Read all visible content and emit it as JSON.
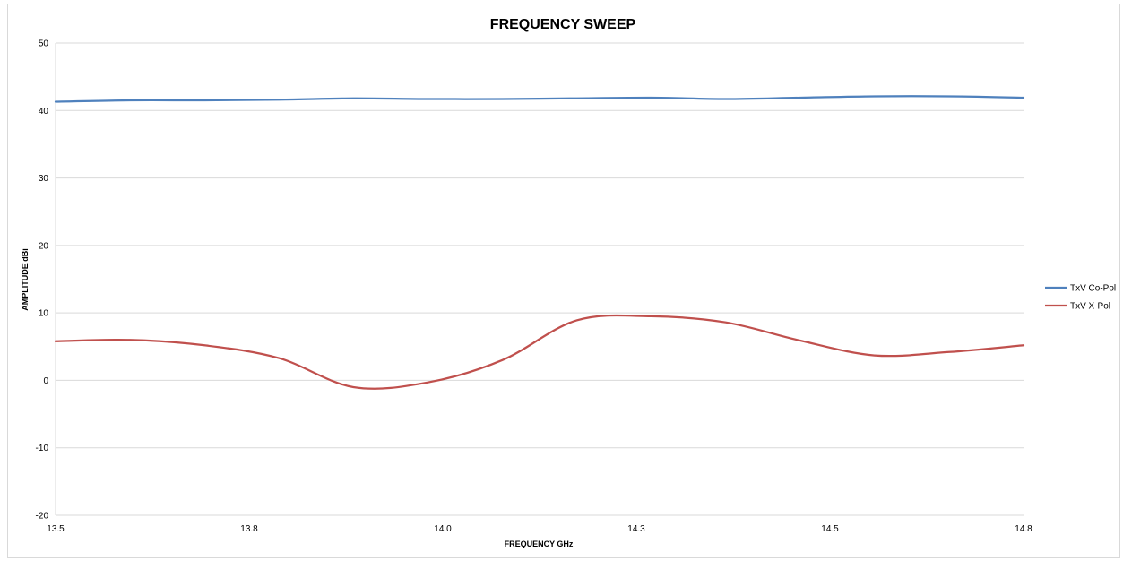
{
  "chart_data": {
    "type": "line",
    "title": "FREQUENCY SWEEP",
    "xlabel": "FREQUENCY GHz",
    "ylabel": "AMPLITUDE dBi",
    "xlim": [
      13.5,
      14.8
    ],
    "ylim": [
      -20,
      50
    ],
    "x_ticks": [
      "13.5",
      "13.8",
      "14.0",
      "14.3",
      "14.5",
      "14.8"
    ],
    "y_ticks": [
      "-20",
      "-10",
      "0",
      "10",
      "20",
      "30",
      "40",
      "50"
    ],
    "grid": "horizontal",
    "legend_position": "right",
    "series": [
      {
        "name": "TxV Co-Pol",
        "color": "#4f81bd",
        "x": [
          13.5,
          13.6,
          13.7,
          13.8,
          13.9,
          14.0,
          14.1,
          14.2,
          14.3,
          14.4,
          14.5,
          14.6,
          14.7,
          14.8
        ],
        "y": [
          41.3,
          41.5,
          41.5,
          41.6,
          41.8,
          41.7,
          41.7,
          41.8,
          41.9,
          41.7,
          41.9,
          42.1,
          42.1,
          41.9
        ]
      },
      {
        "name": "TxV X-Pol",
        "color": "#c0504d",
        "x": [
          13.5,
          13.6,
          13.7,
          13.8,
          13.9,
          14.0,
          14.1,
          14.2,
          14.3,
          14.4,
          14.5,
          14.6,
          14.7,
          14.8
        ],
        "y": [
          5.8,
          6.0,
          5.2,
          3.3,
          -1.0,
          -0.3,
          3.0,
          8.9,
          9.5,
          8.6,
          5.9,
          3.7,
          4.2,
          5.2
        ]
      }
    ]
  }
}
